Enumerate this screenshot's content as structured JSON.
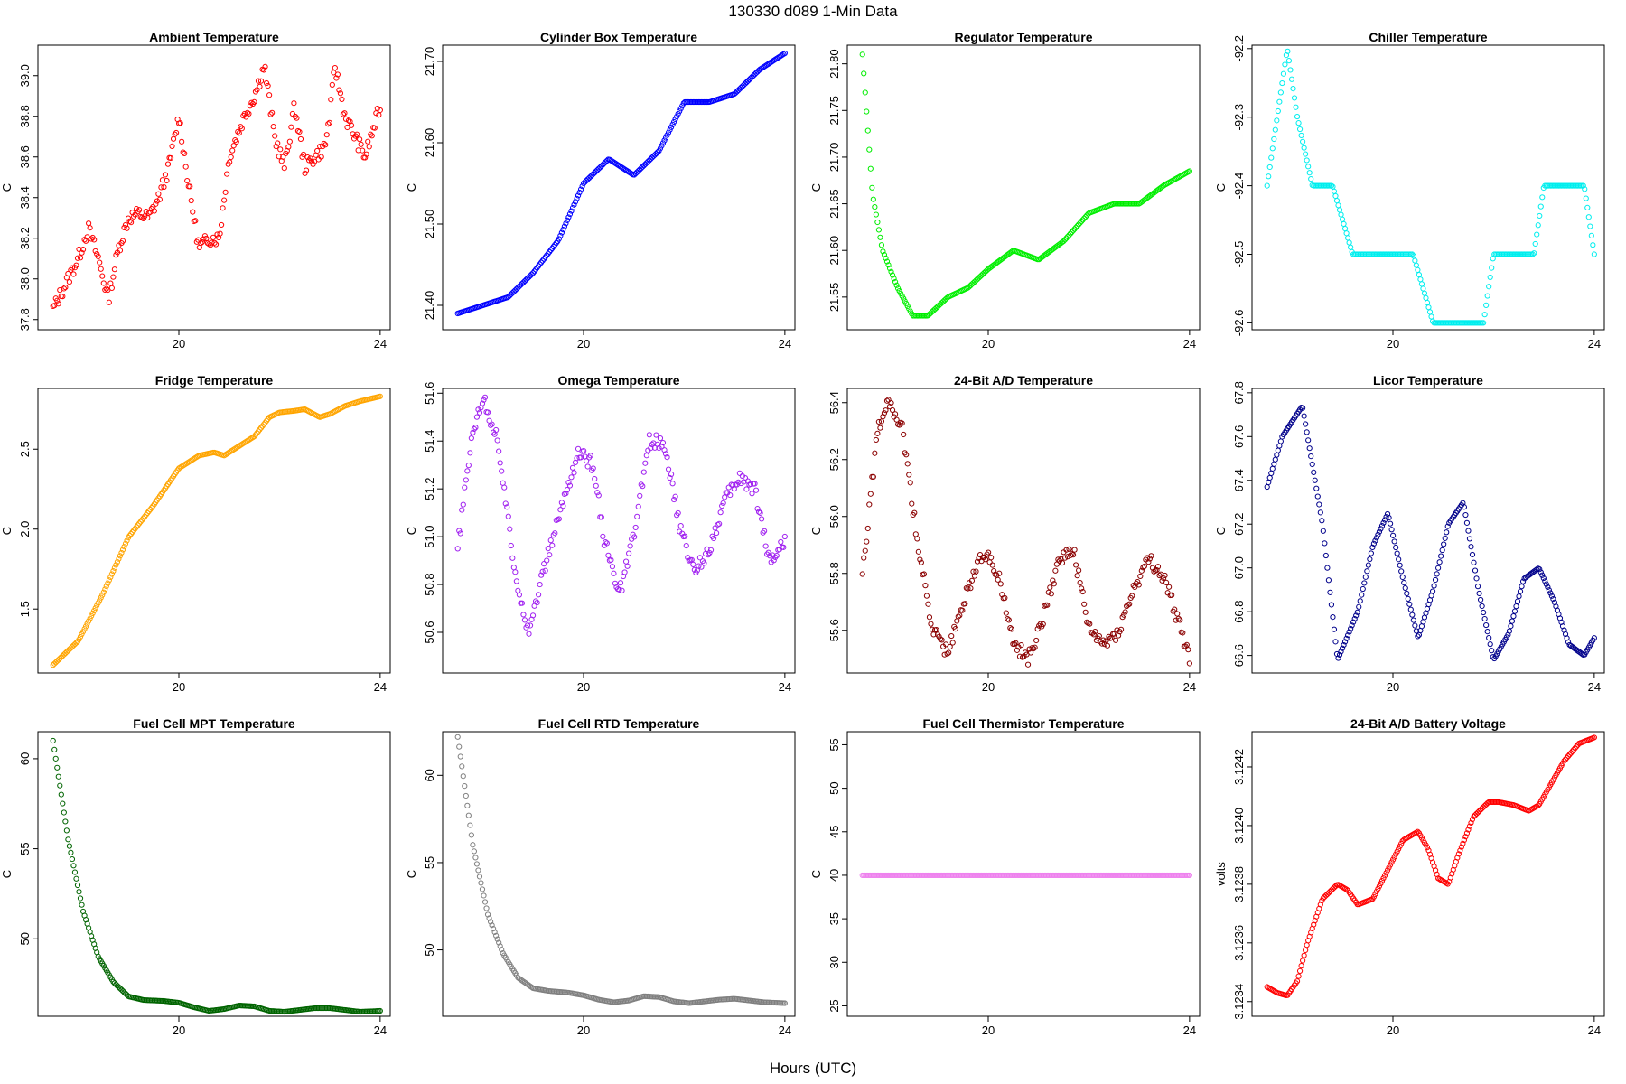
{
  "figure": {
    "title": "130330    d089    1-Min Data",
    "xlabel": "Hours (UTC)"
  },
  "chart_data": [
    {
      "type": "scatter",
      "title": "Ambient Temperature",
      "ylabel": "C",
      "color": "#ff0000",
      "xlim": [
        17.2,
        24.2
      ],
      "ylim": [
        37.75,
        39.15
      ],
      "xticks": [
        20,
        24
      ],
      "yticks": [
        37.8,
        38.0,
        38.2,
        38.4,
        38.6,
        38.8,
        39.0
      ],
      "ytick_labels": [
        "37.8",
        "38.0",
        "38.2",
        "38.4",
        "38.6",
        "38.8",
        "39.0"
      ],
      "x": [
        17.5,
        17.8,
        18.0,
        18.2,
        18.4,
        18.6,
        18.8,
        19.0,
        19.2,
        19.4,
        19.6,
        19.8,
        20.0,
        20.2,
        20.4,
        20.6,
        20.8,
        21.0,
        21.3,
        21.5,
        21.7,
        21.9,
        22.1,
        22.3,
        22.5,
        22.7,
        22.9,
        23.0,
        23.1,
        23.3,
        23.5,
        23.7,
        24.0
      ],
      "y": [
        37.85,
        38.0,
        38.1,
        38.25,
        38.1,
        37.9,
        38.15,
        38.3,
        38.32,
        38.3,
        38.4,
        38.55,
        38.8,
        38.45,
        38.15,
        38.2,
        38.2,
        38.6,
        38.8,
        38.9,
        39.05,
        38.7,
        38.55,
        38.85,
        38.55,
        38.6,
        38.65,
        38.8,
        39.05,
        38.8,
        38.7,
        38.6,
        38.85
      ],
      "n_points": 240
    },
    {
      "type": "scatter",
      "title": "Cylinder Box Temperature",
      "ylabel": "C",
      "color": "#0000ff",
      "xlim": [
        17.2,
        24.2
      ],
      "ylim": [
        21.37,
        21.72
      ],
      "xticks": [
        20,
        24
      ],
      "yticks": [
        21.4,
        21.5,
        21.6,
        21.7
      ],
      "ytick_labels": [
        "21.40",
        "21.50",
        "21.60",
        "21.70"
      ],
      "x": [
        17.5,
        18.0,
        18.5,
        19.0,
        19.5,
        20.0,
        20.5,
        21.0,
        21.5,
        22.0,
        22.5,
        23.0,
        23.5,
        24.0
      ],
      "y": [
        21.39,
        21.4,
        21.41,
        21.44,
        21.48,
        21.55,
        21.58,
        21.56,
        21.59,
        21.65,
        21.65,
        21.66,
        21.69,
        21.71
      ],
      "n_points": 240
    },
    {
      "type": "scatter",
      "title": "Regulator Temperature",
      "ylabel": "C",
      "color": "#00ee00",
      "xlim": [
        17.2,
        24.2
      ],
      "ylim": [
        21.515,
        21.82
      ],
      "xticks": [
        20,
        24
      ],
      "yticks": [
        21.55,
        21.6,
        21.65,
        21.7,
        21.75,
        21.8
      ],
      "ytick_labels": [
        "21.55",
        "21.60",
        "21.65",
        "21.70",
        "21.75",
        "21.80"
      ],
      "x": [
        17.5,
        17.7,
        17.9,
        18.2,
        18.5,
        18.8,
        19.2,
        19.6,
        20.0,
        20.5,
        21.0,
        21.5,
        22.0,
        22.5,
        23.0,
        23.5,
        24.0
      ],
      "y": [
        21.81,
        21.66,
        21.6,
        21.56,
        21.53,
        21.53,
        21.55,
        21.56,
        21.58,
        21.6,
        21.59,
        21.61,
        21.64,
        21.65,
        21.65,
        21.67,
        21.685
      ],
      "n_points": 240
    },
    {
      "type": "scatter",
      "title": "Chiller Temperature",
      "ylabel": "C",
      "color": "#00eeee",
      "xlim": [
        17.2,
        24.2
      ],
      "ylim": [
        -92.61,
        -92.195
      ],
      "xticks": [
        20,
        24
      ],
      "yticks": [
        -92.6,
        -92.5,
        -92.4,
        -92.3,
        -92.2
      ],
      "ytick_labels": [
        "-92.6",
        "-92.5",
        "-92.4",
        "-92.3",
        "-92.2"
      ],
      "x": [
        17.5,
        17.7,
        17.9,
        18.1,
        18.4,
        18.8,
        19.2,
        19.6,
        20.0,
        20.4,
        20.8,
        21.0,
        21.4,
        21.8,
        22.0,
        22.4,
        22.8,
        23.0,
        23.4,
        23.8,
        24.0
      ],
      "y": [
        -92.4,
        -92.3,
        -92.2,
        -92.3,
        -92.4,
        -92.4,
        -92.5,
        -92.5,
        -92.5,
        -92.5,
        -92.6,
        -92.6,
        -92.6,
        -92.6,
        -92.5,
        -92.5,
        -92.5,
        -92.4,
        -92.4,
        -92.4,
        -92.5
      ],
      "n_points": 240
    },
    {
      "type": "scatter",
      "title": "Fridge Temperature",
      "ylabel": "C",
      "color": "#ffa500",
      "xlim": [
        17.2,
        24.2
      ],
      "ylim": [
        1.1,
        2.88
      ],
      "xticks": [
        20,
        24
      ],
      "yticks": [
        1.5,
        2.0,
        2.5
      ],
      "ytick_labels": [
        "1.5",
        "2.0",
        "2.5"
      ],
      "x": [
        17.5,
        18.0,
        18.5,
        19.0,
        19.5,
        20.0,
        20.4,
        20.7,
        20.9,
        21.2,
        21.5,
        21.8,
        22.0,
        22.3,
        22.5,
        22.8,
        23.0,
        23.3,
        23.6,
        24.0
      ],
      "y": [
        1.15,
        1.3,
        1.6,
        1.95,
        2.15,
        2.38,
        2.46,
        2.48,
        2.46,
        2.52,
        2.58,
        2.7,
        2.73,
        2.74,
        2.75,
        2.7,
        2.72,
        2.77,
        2.8,
        2.83
      ],
      "n_points": 240
    },
    {
      "type": "scatter",
      "title": "Omega Temperature",
      "ylabel": "C",
      "color": "#a020f0",
      "xlim": [
        17.2,
        24.2
      ],
      "ylim": [
        50.43,
        51.62
      ],
      "xticks": [
        20,
        24
      ],
      "yticks": [
        50.6,
        50.8,
        51.0,
        51.2,
        51.4,
        51.6
      ],
      "ytick_labels": [
        "50.6",
        "50.8",
        "51.0",
        "51.2",
        "51.4",
        "51.6"
      ],
      "x": [
        17.5,
        17.8,
        18.0,
        18.3,
        18.6,
        18.9,
        19.2,
        19.6,
        19.9,
        20.2,
        20.4,
        20.7,
        21.0,
        21.3,
        21.6,
        21.9,
        22.2,
        22.5,
        22.8,
        23.1,
        23.4,
        23.7,
        24.0
      ],
      "y": [
        50.95,
        51.45,
        51.58,
        51.4,
        50.9,
        50.6,
        50.85,
        51.15,
        51.35,
        51.3,
        51.0,
        50.75,
        51.0,
        51.4,
        51.4,
        51.05,
        50.85,
        50.95,
        51.15,
        51.25,
        51.2,
        50.9,
        50.98
      ],
      "n_points": 240
    },
    {
      "type": "scatter",
      "title": "24-Bit A/D Temperature",
      "ylabel": "C",
      "color": "#8b0000",
      "xlim": [
        17.2,
        24.2
      ],
      "ylim": [
        55.45,
        56.45
      ],
      "xticks": [
        20,
        24
      ],
      "yticks": [
        55.6,
        55.8,
        56.0,
        56.2,
        56.4
      ],
      "ytick_labels": [
        "55.6",
        "55.8",
        "56.0",
        "56.2",
        "56.4"
      ],
      "x": [
        17.5,
        17.8,
        18.0,
        18.3,
        18.6,
        18.9,
        19.2,
        19.6,
        19.9,
        20.2,
        20.5,
        20.8,
        21.1,
        21.4,
        21.7,
        22.0,
        22.3,
        22.6,
        22.9,
        23.2,
        23.5,
        23.8,
        24.0
      ],
      "y": [
        55.8,
        56.3,
        56.42,
        56.3,
        55.9,
        55.6,
        55.52,
        55.75,
        55.88,
        55.8,
        55.55,
        55.5,
        55.65,
        55.85,
        55.88,
        55.6,
        55.55,
        55.6,
        55.75,
        55.85,
        55.78,
        55.62,
        55.5
      ],
      "n_points": 240
    },
    {
      "type": "scatter",
      "title": "Licor Temperature",
      "ylabel": "C",
      "color": "#00008b",
      "xlim": [
        17.2,
        24.2
      ],
      "ylim": [
        66.52,
        67.82
      ],
      "xticks": [
        20,
        24
      ],
      "yticks": [
        66.6,
        66.8,
        67.0,
        67.2,
        67.4,
        67.6,
        67.8
      ],
      "ytick_labels": [
        "66.6",
        "66.8",
        "67.0",
        "67.2",
        "67.4",
        "67.6",
        "67.8"
      ],
      "x": [
        17.5,
        17.8,
        18.2,
        18.6,
        18.9,
        19.3,
        19.6,
        19.9,
        20.2,
        20.5,
        20.8,
        21.1,
        21.4,
        21.7,
        22.0,
        22.3,
        22.6,
        22.9,
        23.2,
        23.5,
        23.8,
        24.0
      ],
      "y": [
        67.37,
        67.6,
        67.74,
        67.2,
        66.58,
        66.8,
        67.1,
        67.25,
        66.95,
        66.68,
        66.9,
        67.2,
        67.3,
        66.9,
        66.58,
        66.7,
        66.95,
        67.0,
        66.85,
        66.65,
        66.6,
        66.68
      ],
      "n_points": 240
    },
    {
      "type": "scatter",
      "title": "Fuel Cell MPT Temperature",
      "ylabel": "C",
      "color": "#006400",
      "xlim": [
        17.2,
        24.2
      ],
      "ylim": [
        45.7,
        61.5
      ],
      "xticks": [
        20,
        24
      ],
      "yticks": [
        50,
        55,
        60
      ],
      "ytick_labels": [
        "50",
        "55",
        "60"
      ],
      "x": [
        17.5,
        17.8,
        18.1,
        18.4,
        18.7,
        19.0,
        19.3,
        19.7,
        20.0,
        20.3,
        20.6,
        20.9,
        21.2,
        21.5,
        21.8,
        22.1,
        22.4,
        22.7,
        23.0,
        23.3,
        23.6,
        24.0
      ],
      "y": [
        61.0,
        55.5,
        51.5,
        49.0,
        47.6,
        46.8,
        46.6,
        46.55,
        46.45,
        46.2,
        46.0,
        46.1,
        46.3,
        46.25,
        46.0,
        45.95,
        46.05,
        46.15,
        46.15,
        46.05,
        45.95,
        46.0
      ],
      "n_points": 240
    },
    {
      "type": "scatter",
      "title": "Fuel Cell RTD Temperature",
      "ylabel": "C",
      "color": "#808080",
      "xlim": [
        17.2,
        24.2
      ],
      "ylim": [
        46.2,
        62.5
      ],
      "xticks": [
        20,
        24
      ],
      "yticks": [
        50,
        55,
        60
      ],
      "ytick_labels": [
        "50",
        "55",
        "60"
      ],
      "x": [
        17.5,
        17.8,
        18.1,
        18.4,
        18.7,
        19.0,
        19.3,
        19.7,
        20.0,
        20.3,
        20.6,
        20.9,
        21.2,
        21.5,
        21.8,
        22.1,
        22.4,
        22.7,
        23.0,
        23.3,
        23.6,
        24.0
      ],
      "y": [
        62.2,
        56.0,
        52.0,
        49.8,
        48.4,
        47.8,
        47.65,
        47.55,
        47.4,
        47.15,
        47.0,
        47.1,
        47.35,
        47.3,
        47.05,
        46.95,
        47.05,
        47.15,
        47.2,
        47.1,
        47.0,
        46.95
      ],
      "n_points": 240
    },
    {
      "type": "scatter",
      "title": "Fuel Cell Thermistor Temperature",
      "ylabel": "C",
      "color": "#ee82ee",
      "xlim": [
        17.2,
        24.2
      ],
      "ylim": [
        23.8,
        56.5
      ],
      "xticks": [
        20,
        24
      ],
      "yticks": [
        25,
        30,
        35,
        40,
        45,
        50,
        55
      ],
      "ytick_labels": [
        "25",
        "30",
        "35",
        "40",
        "45",
        "50",
        "55"
      ],
      "x": [
        17.5,
        24.0
      ],
      "y": [
        40.0,
        40.0
      ],
      "n_points": 240
    },
    {
      "type": "scatter",
      "title": "24-Bit A/D Battery Voltage",
      "ylabel": "volts",
      "color": "#ff0000",
      "xlim": [
        17.2,
        24.2
      ],
      "ylim": [
        3.12335,
        3.12432
      ],
      "xticks": [
        20,
        24
      ],
      "yticks": [
        3.1234,
        3.1236,
        3.1238,
        3.124,
        3.1242
      ],
      "ytick_labels": [
        "3.1234",
        "3.1236",
        "3.1238",
        "3.1240",
        "3.1242"
      ],
      "x": [
        17.5,
        17.7,
        17.9,
        18.1,
        18.3,
        18.6,
        18.9,
        19.1,
        19.3,
        19.6,
        19.9,
        20.2,
        20.5,
        20.7,
        20.9,
        21.1,
        21.3,
        21.6,
        21.9,
        22.1,
        22.4,
        22.7,
        22.9,
        23.1,
        23.4,
        23.7,
        24.0
      ],
      "y": [
        3.12345,
        3.12343,
        3.12342,
        3.12347,
        3.1236,
        3.12375,
        3.1238,
        3.12378,
        3.12373,
        3.12375,
        3.12385,
        3.12395,
        3.12398,
        3.12392,
        3.12382,
        3.1238,
        3.1239,
        3.12403,
        3.12408,
        3.12408,
        3.12407,
        3.12405,
        3.12407,
        3.12413,
        3.12422,
        3.12428,
        3.1243
      ],
      "n_points": 240
    }
  ]
}
